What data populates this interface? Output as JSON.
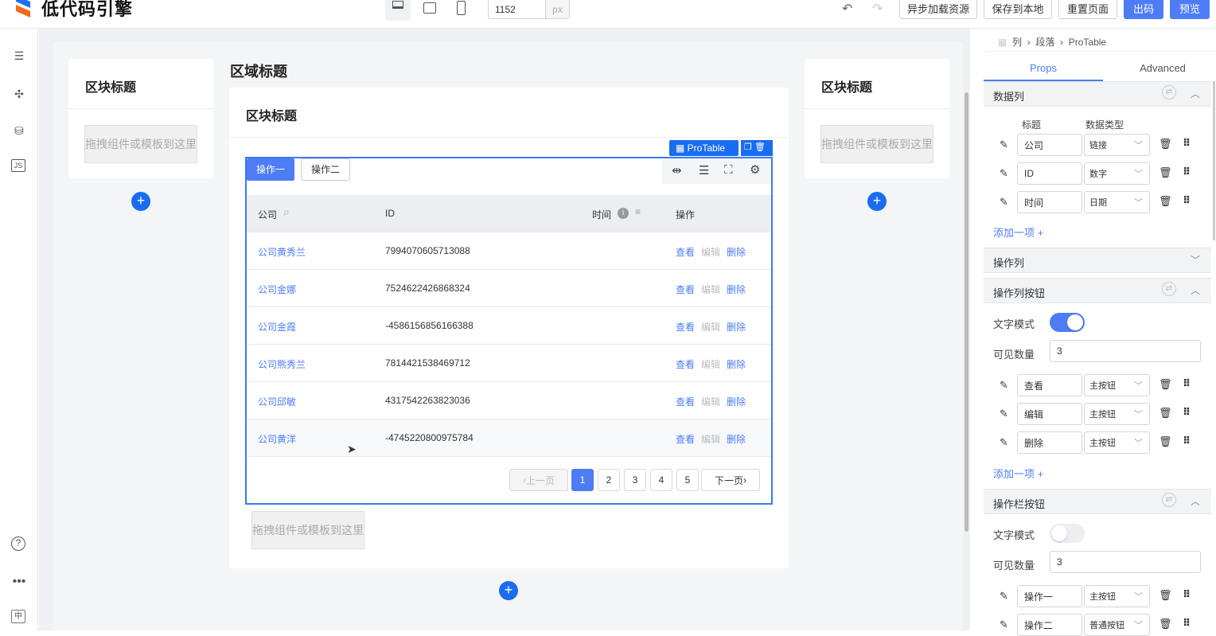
{
  "app": {
    "logo_text": "低代码引擎",
    "width_value": "1152",
    "width_unit": "px",
    "buttons": {
      "async": "异步加载资源",
      "save": "保存到本地",
      "reset": "重置页面",
      "code": "出码",
      "preview": "预览"
    },
    "accent": "#4d7cf5"
  },
  "canvas": {
    "left_card": {
      "title": "区块标题",
      "drop": "拖拽组件或模板到这里"
    },
    "right_card": {
      "title": "区块标题",
      "drop": "拖拽组件或模板到这里"
    },
    "area_title": "区域标题",
    "center_card": {
      "title": "区块标题",
      "drop": "拖拽组件或模板到这里"
    },
    "selection_label": "ProTable",
    "protable": {
      "toolbar_buttons": [
        "操作一",
        "操作二"
      ],
      "columns": [
        "公司",
        "ID",
        "时间",
        "操作"
      ],
      "rows": [
        {
          "company": "公司黄秀兰",
          "id": "7994070605713088"
        },
        {
          "company": "公司金娜",
          "id": "7524622426868324"
        },
        {
          "company": "公司金霞",
          "id": "-4586156856166388"
        },
        {
          "company": "公司熊秀兰",
          "id": "7814421538469712"
        },
        {
          "company": "公司邱敏",
          "id": "4317542263823036"
        },
        {
          "company": "公司黄洋",
          "id": "-4745220800975784"
        }
      ],
      "actions": [
        "查看",
        "编辑",
        "删除"
      ],
      "pagination": {
        "prev": "上一页",
        "next": "下一页",
        "pages": [
          "1",
          "2",
          "3",
          "4",
          "5"
        ],
        "current": "1"
      }
    }
  },
  "panel": {
    "breadcrumb": [
      "列",
      "段落",
      "ProTable"
    ],
    "tabs": [
      "Props",
      "Advanced"
    ],
    "data_columns": {
      "title": "数据列",
      "head_title": "标题",
      "head_type": "数据类型",
      "items": [
        {
          "title": "公司",
          "type": "链接"
        },
        {
          "title": "ID",
          "type": "数字"
        },
        {
          "title": "时间",
          "type": "日期"
        }
      ],
      "add": "添加一项 +"
    },
    "action_column": {
      "title": "操作列"
    },
    "action_buttons": {
      "title": "操作列按钮",
      "text_mode_label": "文字模式",
      "text_mode": true,
      "count_label": "可见数量",
      "count": "3",
      "items": [
        {
          "title": "查看",
          "type": "主按钮"
        },
        {
          "title": "编辑",
          "type": "主按钮"
        },
        {
          "title": "删除",
          "type": "主按钮"
        }
      ],
      "add": "添加一项 +"
    },
    "toolbar_buttons": {
      "title": "操作栏按钮",
      "text_mode_label": "文字模式",
      "text_mode": false,
      "count_label": "可见数量",
      "count": "3",
      "items": [
        {
          "title": "操作一",
          "type": "主按钮"
        },
        {
          "title": "操作二",
          "type": "普通按钮"
        }
      ]
    }
  }
}
